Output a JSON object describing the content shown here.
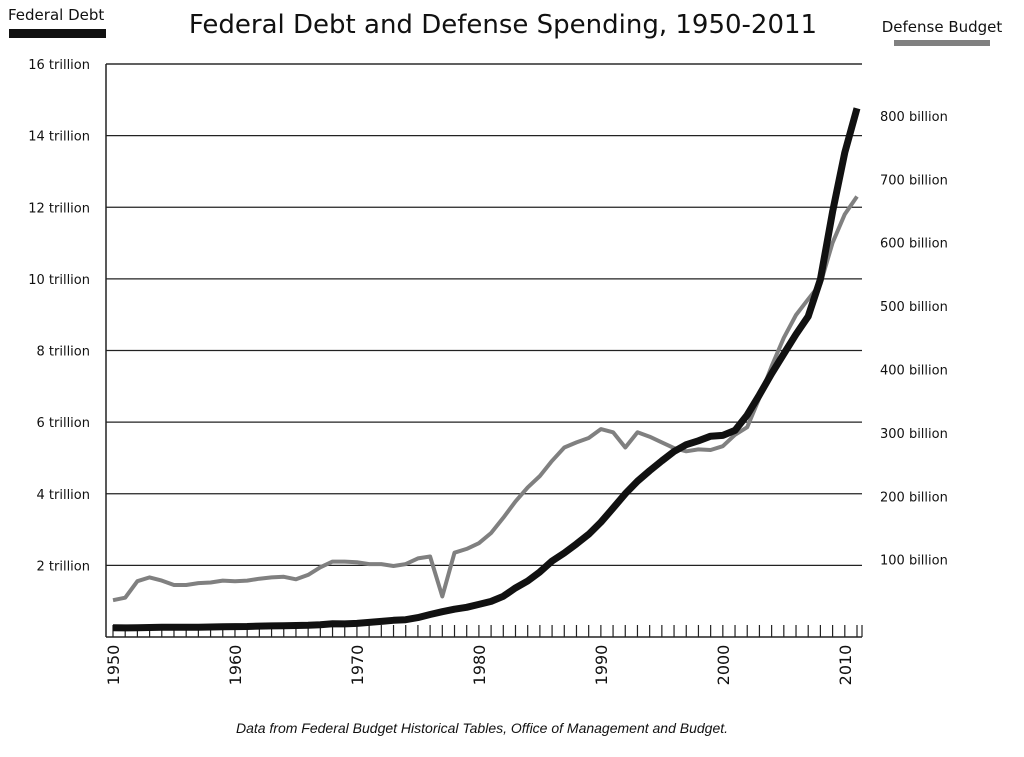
{
  "chart_data": {
    "type": "line",
    "title": "Federal Debt and Defense Spending, 1950-2011",
    "source_note": "Data from Federal Budget Historical Tables, Office of Management and Budget.",
    "legend": {
      "left": "Federal Debt",
      "right": "Defense Budget"
    },
    "colors": {
      "Federal Debt": "#111111",
      "Defense Budget": "#808080"
    },
    "x": [
      1950,
      1951,
      1952,
      1953,
      1954,
      1955,
      1956,
      1957,
      1958,
      1959,
      1960,
      1961,
      1962,
      1963,
      1964,
      1965,
      1966,
      1967,
      1968,
      1969,
      1970,
      1971,
      1972,
      1973,
      1974,
      1975,
      1976,
      1977,
      1978,
      1979,
      1980,
      1981,
      1982,
      1983,
      1984,
      1985,
      1986,
      1987,
      1988,
      1989,
      1990,
      1991,
      1992,
      1993,
      1994,
      1995,
      1996,
      1997,
      1998,
      1999,
      2000,
      2001,
      2002,
      2003,
      2004,
      2005,
      2006,
      2007,
      2008,
      2009,
      2010,
      2011
    ],
    "x_ticks": [
      "1950",
      "1960",
      "1970",
      "1980",
      "1990",
      "2000",
      "2010"
    ],
    "xlim": [
      1950,
      2011
    ],
    "left_axis": {
      "ticks": [
        "2 trillion",
        "4 trillion",
        "6 trillion",
        "8 trillion",
        "10 trillion",
        "12 trillion",
        "14 trillion",
        "16 trillion"
      ],
      "tick_values": [
        2,
        4,
        6,
        8,
        10,
        12,
        14,
        16
      ],
      "ylim": [
        0,
        16
      ],
      "unit": "trillion"
    },
    "right_axis": {
      "ticks": [
        "100 billion",
        "200 billion",
        "300 billion",
        "400 billion",
        "500 billion",
        "600 billion",
        "700 billion",
        "800 billion"
      ],
      "tick_values": [
        100,
        200,
        300,
        400,
        500,
        600,
        700,
        800
      ],
      "ylim": [
        -22,
        882
      ],
      "unit": "billion"
    },
    "grid": "horizontal",
    "series": [
      {
        "name": "Federal Debt",
        "axis": "left",
        "values": [
          0.257,
          0.255,
          0.259,
          0.266,
          0.271,
          0.274,
          0.272,
          0.272,
          0.28,
          0.287,
          0.291,
          0.293,
          0.303,
          0.31,
          0.316,
          0.322,
          0.328,
          0.34,
          0.369,
          0.366,
          0.381,
          0.408,
          0.436,
          0.466,
          0.484,
          0.542,
          0.629,
          0.706,
          0.777,
          0.829,
          0.909,
          0.995,
          1.137,
          1.372,
          1.565,
          1.817,
          2.121,
          2.346,
          2.601,
          2.868,
          3.206,
          3.598,
          4.002,
          4.351,
          4.643,
          4.921,
          5.181,
          5.369,
          5.478,
          5.606,
          5.629,
          5.77,
          6.198,
          6.76,
          7.355,
          7.905,
          8.451,
          8.951,
          9.986,
          11.876,
          13.529,
          14.764
        ]
      },
      {
        "name": "Defense Budget",
        "axis": "right",
        "values": [
          36,
          40,
          66,
          72,
          67,
          60,
          60,
          63,
          64,
          67,
          66,
          67,
          70,
          72,
          73,
          69,
          76,
          88,
          97,
          97,
          96,
          93,
          93,
          90,
          93,
          102,
          105,
          42,
          111,
          117,
          126,
          142,
          166,
          192,
          214,
          232,
          256,
          277,
          285,
          292,
          306,
          301,
          277,
          301,
          294,
          285,
          276,
          271,
          274,
          273,
          279,
          297,
          309,
          355,
          405,
          450,
          486,
          511,
          535,
          600,
          645,
          673
        ]
      }
    ]
  }
}
